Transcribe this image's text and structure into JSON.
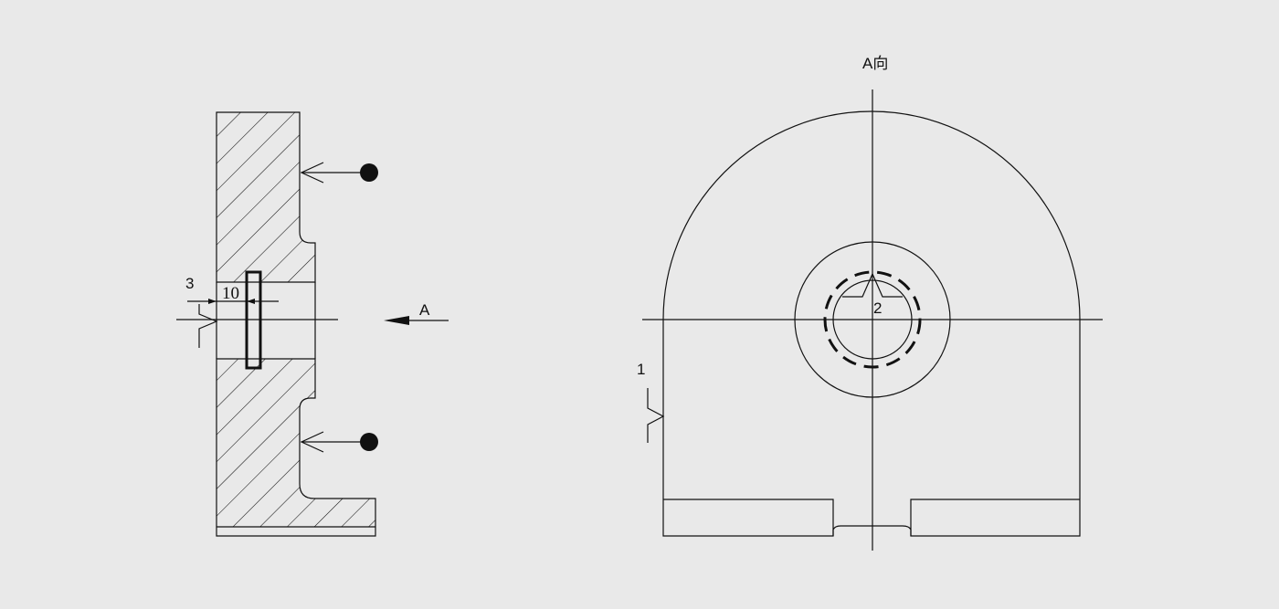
{
  "colors": {
    "background": "#e9e9e9",
    "line": "#111111"
  },
  "section_view": {
    "dimension_3": "3",
    "dimension_10": "10",
    "arrow_label": "A",
    "markers": [
      "force-arrow-dot-top",
      "force-arrow-dot-bottom"
    ]
  },
  "view_a": {
    "title": "A向",
    "callout_1": "1",
    "callout_2": "2"
  }
}
